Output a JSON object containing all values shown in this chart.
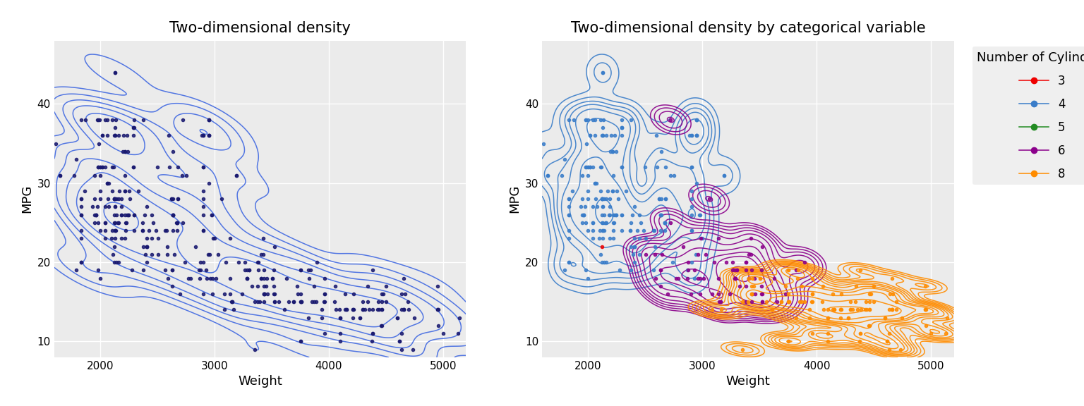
{
  "title1": "Two-dimensional density",
  "title2": "Two-dimensional density by categorical variable",
  "xlabel": "Weight",
  "ylabel": "MPG",
  "legend_title": "Number of Cylinders",
  "xlim": [
    1613,
    5140
  ],
  "ylim": [
    8,
    48
  ],
  "bg_color": "#EBEBEB",
  "grid_color": "white",
  "plot1_dot_color": "#191970",
  "plot1_contour_color": "#4169E1",
  "cylinder_colors": {
    "3": "#EE0000",
    "4": "#3A7DC9",
    "5": "#228B22",
    "6": "#8B008B",
    "8": "#FF8C00"
  },
  "title_fontsize": 15,
  "axis_label_fontsize": 13,
  "tick_fontsize": 11,
  "legend_fontsize": 12,
  "legend_title_fontsize": 13,
  "dot_size": 9,
  "dot_alpha": 0.85,
  "contour_linewidth": 1.1,
  "n_contour_levels_all": 7,
  "n_contour_levels_3": 15,
  "n_contour_levels_4": 7,
  "n_contour_levels_5": 4,
  "n_contour_levels_6": 10,
  "n_contour_levels_8": 12
}
